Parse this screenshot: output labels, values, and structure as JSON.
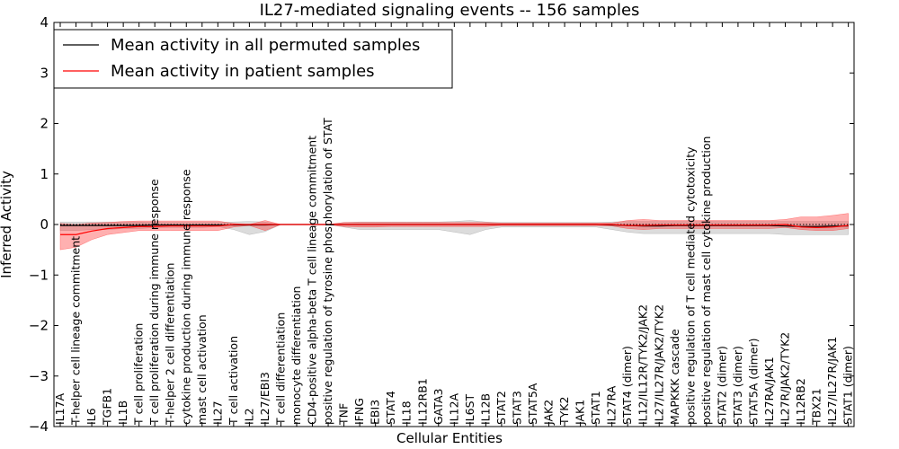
{
  "chart_data": {
    "type": "line",
    "title": "IL27-mediated signaling events -- 156 samples",
    "xlabel": "Cellular Entities",
    "ylabel": "Inferred Activity",
    "ylim": [
      -4,
      4
    ],
    "yticks": [
      -4,
      -3,
      -2,
      -1,
      0,
      1,
      2,
      3,
      4
    ],
    "ytick_labels": [
      "−4",
      "−3",
      "−2",
      "−1",
      "0",
      "1",
      "2",
      "3",
      "4"
    ],
    "grid": false,
    "legend_position": "top-left",
    "legend": [
      {
        "label": "Mean activity in all permuted samples",
        "color": "#000000"
      },
      {
        "label": "Mean activity in patient samples",
        "color": "#ff0000"
      }
    ],
    "categories": [
      "IL17A",
      "T-helper cell lineage commitment",
      "IL6",
      "TGFB1",
      "IL1B",
      "T cell proliferation",
      "T cell proliferation during immune response",
      "T-helper 2 cell differentiation",
      "cytokine production during immune response",
      "mast cell activation",
      "IL27",
      "T cell activation",
      "IL2",
      "IL27/EBI3",
      "T cell differentiation",
      "monocyte differentiation",
      "CD4-positive alpha-beta T cell lineage commitment",
      "positive regulation of tyrosine phosphorylation of STAT",
      "TNF",
      "IFNG",
      "EBI3",
      "STAT4",
      "IL18",
      "IL12RB1",
      "GATA3",
      "IL12A",
      "IL6ST",
      "IL12B",
      "STAT2",
      "STAT3",
      "STAT5A",
      "JAK2",
      "TYK2",
      "JAK1",
      "STAT1",
      "IL27RA",
      "STAT4 (dimer)",
      "IL12/IL12R/TYK2/JAK2",
      "IL27/IL27R/JAK2/TYK2",
      "MAPKKK cascade",
      "positive regulation of T cell mediated cytotoxicity",
      "positive regulation of mast cell cytokine production",
      "STAT2 (dimer)",
      "STAT3 (dimer)",
      "STAT5A (dimer)",
      "IL27RA/JAK1",
      "IL27R/JAK2/TYK2",
      "IL12RB2",
      "TBX21",
      "IL27/IL27R/JAK1",
      "STAT1 (dimer)"
    ],
    "series": [
      {
        "name": "Mean activity in all permuted samples",
        "color": "#000000",
        "values": [
          -0.02,
          -0.02,
          -0.02,
          -0.02,
          -0.02,
          -0.02,
          -0.01,
          -0.01,
          -0.01,
          -0.01,
          -0.01,
          -0.01,
          -0.01,
          -0.01,
          0.0,
          0.0,
          0.0,
          0.0,
          0.0,
          0.0,
          0.0,
          0.0,
          0.0,
          0.0,
          0.0,
          0.0,
          0.0,
          0.0,
          0.0,
          0.0,
          0.0,
          0.0,
          0.0,
          0.0,
          0.0,
          -0.01,
          -0.02,
          -0.03,
          -0.03,
          -0.02,
          -0.02,
          -0.02,
          -0.02,
          -0.02,
          -0.02,
          -0.02,
          -0.03,
          -0.04,
          -0.04,
          -0.03,
          -0.03
        ],
        "band_lower": [
          -0.12,
          -0.12,
          -0.1,
          -0.1,
          -0.08,
          -0.08,
          -0.06,
          -0.06,
          -0.06,
          -0.06,
          -0.04,
          -0.1,
          -0.2,
          -0.14,
          0.0,
          0.0,
          0.0,
          0.0,
          -0.05,
          -0.1,
          -0.1,
          -0.1,
          -0.1,
          -0.1,
          -0.1,
          -0.15,
          -0.2,
          -0.1,
          -0.05,
          -0.05,
          -0.05,
          -0.05,
          -0.05,
          -0.05,
          -0.05,
          -0.1,
          -0.15,
          -0.18,
          -0.18,
          -0.18,
          -0.18,
          -0.18,
          -0.18,
          -0.18,
          -0.18,
          -0.18,
          -0.2,
          -0.2,
          -0.2,
          -0.2,
          -0.2
        ],
        "band_upper": [
          0.05,
          0.05,
          0.05,
          0.05,
          0.05,
          0.05,
          0.04,
          0.04,
          0.04,
          0.04,
          0.04,
          0.05,
          0.06,
          0.05,
          0.0,
          0.0,
          0.0,
          0.0,
          0.04,
          0.05,
          0.05,
          0.05,
          0.05,
          0.05,
          0.05,
          0.06,
          0.08,
          0.05,
          0.04,
          0.04,
          0.04,
          0.04,
          0.04,
          0.04,
          0.04,
          0.05,
          0.06,
          0.06,
          0.06,
          0.06,
          0.06,
          0.06,
          0.06,
          0.06,
          0.06,
          0.06,
          0.06,
          0.06,
          0.06,
          0.06,
          0.06
        ]
      },
      {
        "name": "Mean activity in patient samples",
        "color": "#ff0000",
        "values": [
          -0.2,
          -0.2,
          -0.13,
          -0.08,
          -0.06,
          -0.04,
          -0.04,
          -0.03,
          -0.03,
          -0.03,
          -0.03,
          0.0,
          0.0,
          0.0,
          0.0,
          0.0,
          0.0,
          0.0,
          0.0,
          0.0,
          0.0,
          0.0,
          0.0,
          0.0,
          0.0,
          0.0,
          0.0,
          0.0,
          0.0,
          0.0,
          0.0,
          0.0,
          0.0,
          0.0,
          0.0,
          0.0,
          -0.02,
          -0.02,
          -0.01,
          -0.01,
          -0.01,
          -0.01,
          -0.01,
          -0.01,
          -0.01,
          -0.01,
          0.0,
          -0.05,
          -0.06,
          -0.05,
          -0.02
        ],
        "band_lower": [
          -0.5,
          -0.45,
          -0.3,
          -0.2,
          -0.16,
          -0.12,
          -0.12,
          -0.12,
          -0.12,
          -0.12,
          -0.12,
          -0.05,
          -0.02,
          -0.12,
          0.0,
          0.0,
          0.0,
          0.0,
          -0.04,
          -0.05,
          -0.05,
          -0.04,
          -0.04,
          -0.04,
          -0.04,
          -0.04,
          -0.04,
          -0.04,
          -0.02,
          -0.02,
          -0.02,
          -0.02,
          -0.02,
          -0.02,
          -0.02,
          -0.03,
          -0.08,
          -0.1,
          -0.08,
          -0.08,
          -0.08,
          -0.08,
          -0.08,
          -0.08,
          -0.08,
          -0.08,
          -0.06,
          -0.1,
          -0.12,
          -0.12,
          -0.08
        ],
        "band_upper": [
          0.02,
          0.0,
          0.03,
          0.04,
          0.06,
          0.07,
          0.07,
          0.07,
          0.07,
          0.07,
          0.07,
          0.02,
          0.0,
          0.08,
          0.0,
          0.0,
          0.0,
          0.0,
          0.04,
          0.04,
          0.04,
          0.04,
          0.04,
          0.04,
          0.04,
          0.04,
          0.04,
          0.04,
          0.03,
          0.03,
          0.03,
          0.03,
          0.03,
          0.03,
          0.03,
          0.03,
          0.08,
          0.1,
          0.08,
          0.08,
          0.08,
          0.08,
          0.08,
          0.08,
          0.08,
          0.08,
          0.1,
          0.15,
          0.15,
          0.18,
          0.22
        ]
      }
    ]
  }
}
